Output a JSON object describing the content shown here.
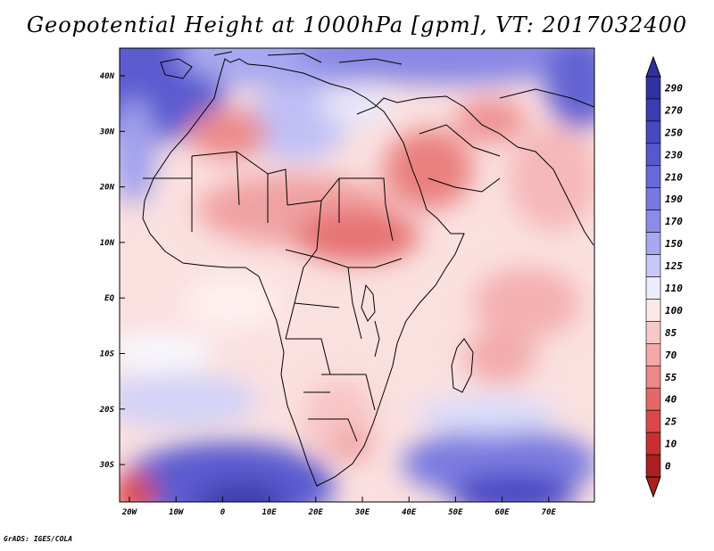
{
  "figure": {
    "title": "Geopotential Height at 1000hPa [gpm], VT: 2017032400",
    "footer": "GrADS: IGES/COLA"
  },
  "map": {
    "region": "Africa and Middle East",
    "lat_labels": [
      "40N",
      "30N",
      "20N",
      "10N",
      "EQ",
      "10S",
      "20S",
      "30S"
    ],
    "lon_labels": [
      "20W",
      "10W",
      "0",
      "10E",
      "20E",
      "30E",
      "40E",
      "50E",
      "60E",
      "70E"
    ],
    "lon_range": [
      -22,
      80
    ],
    "lat_range": [
      -36,
      45
    ]
  },
  "colorbar": {
    "levels": [
      "290",
      "270",
      "250",
      "230",
      "210",
      "190",
      "170",
      "150",
      "125",
      "110",
      "100",
      "85",
      "70",
      "55",
      "40",
      "25",
      "10",
      "0"
    ],
    "colors": [
      "#3030a0",
      "#3c3cb0",
      "#4848c0",
      "#5858cc",
      "#6868d8",
      "#7878e0",
      "#8c8ce8",
      "#a8a8f0",
      "#c8c8f8",
      "#ececfc",
      "#fce8e8",
      "#f8c8c8",
      "#f4a8a8",
      "#ec8888",
      "#e46868",
      "#dc4848",
      "#c83030",
      "#a82020"
    ]
  }
}
